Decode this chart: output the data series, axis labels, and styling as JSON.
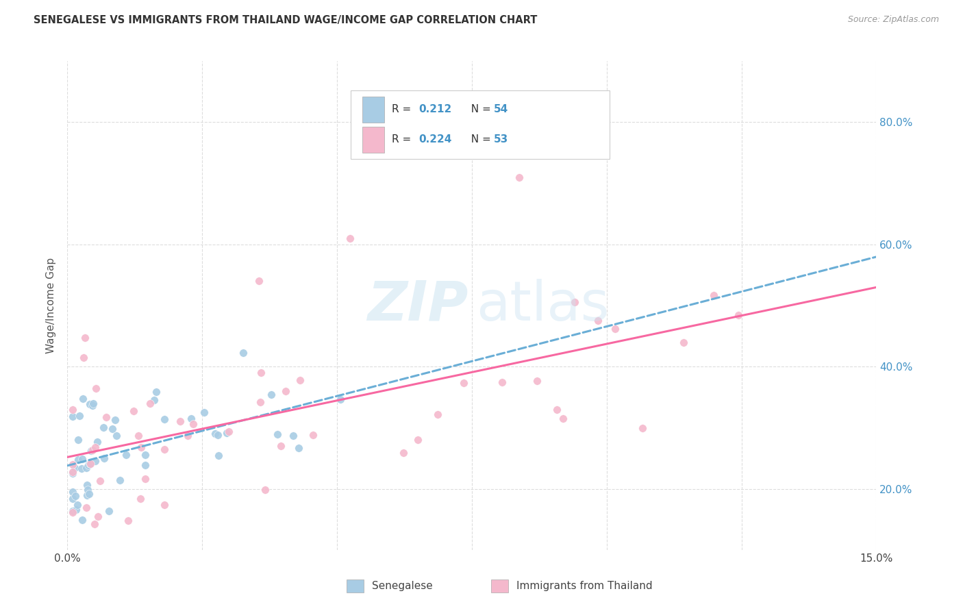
{
  "title": "SENEGALESE VS IMMIGRANTS FROM THAILAND WAGE/INCOME GAP CORRELATION CHART",
  "source": "Source: ZipAtlas.com",
  "ylabel": "Wage/Income Gap",
  "color_blue": "#a8cce4",
  "color_pink": "#f4b8cc",
  "color_blue_line": "#6aaed6",
  "color_pink_line": "#f768a1",
  "color_ytick": "#4292c6",
  "xlim": [
    0.0,
    0.15
  ],
  "ylim": [
    0.1,
    0.9
  ],
  "ytick_vals": [
    0.2,
    0.4,
    0.6,
    0.8
  ],
  "ytick_labels": [
    "20.0%",
    "40.0%",
    "60.0%",
    "80.0%"
  ],
  "xtick_vals": [
    0.0,
    0.025,
    0.05,
    0.075,
    0.1,
    0.125,
    0.15
  ],
  "xtick_labels": [
    "0.0%",
    "",
    "",
    "",
    "",
    "",
    "15.0%"
  ],
  "legend_r1": "0.212",
  "legend_n1": "54",
  "legend_r2": "0.224",
  "legend_n2": "53",
  "watermark_zip": "ZIP",
  "watermark_atlas": "atlas"
}
